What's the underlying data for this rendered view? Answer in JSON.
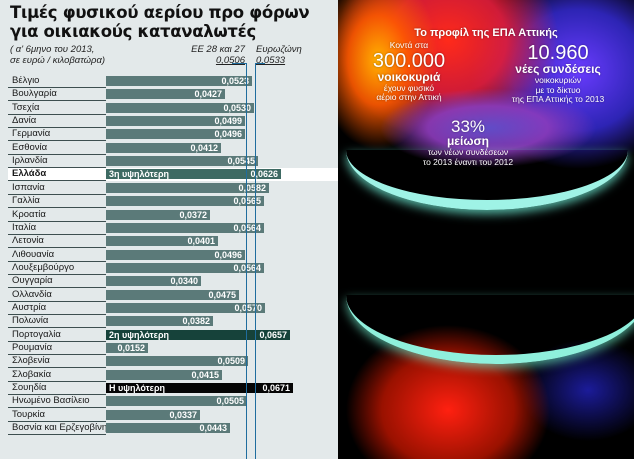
{
  "chart_data": {
    "type": "bar",
    "orientation": "horizontal",
    "title": "Τιμές φυσικού αερίου προ φόρων για οικιακούς καταναλωτές",
    "subtitle": "(α' 6μηνο του 2013, σε ευρώ / κιλοβατώρα)",
    "xlabel": "",
    "ylabel": "",
    "xlim": [
      0,
      0.07
    ],
    "grid": false,
    "reference_lines": [
      {
        "name": "ΕΕ 28 και 27",
        "value": 0.0506,
        "label": "0,0506"
      },
      {
        "name": "Ευρωζώνη",
        "value": 0.0533,
        "label": "0,0533"
      }
    ],
    "categories": [
      "Βέλγιο",
      "Βουλγαρία",
      "Τσεχία",
      "Δανία",
      "Γερμανία",
      "Εσθονία",
      "Ιρλανδία",
      "Ελλάδα",
      "Ισπανία",
      "Γαλλία",
      "Κροατία",
      "Ιταλία",
      "Λετονία",
      "Λιθουανία",
      "Λουξεμβούργο",
      "Ουγγαρία",
      "Ολλανδία",
      "Αυστρία",
      "Πολωνία",
      "Πορτογαλία",
      "Ρουμανία",
      "Σλοβενία",
      "Σλοβακία",
      "Σουηδία",
      "Ηνωμένο Βασίλειο",
      "Τουρκία",
      "Βοσνία και Ερζεγοβίνη"
    ],
    "values": [
      0.0523,
      0.0427,
      0.053,
      0.0499,
      0.0496,
      0.0412,
      0.0545,
      0.0626,
      0.0582,
      0.0565,
      0.0372,
      0.0564,
      0.0401,
      0.0496,
      0.0564,
      0.034,
      0.0475,
      0.057,
      0.0382,
      0.0657,
      0.0152,
      0.0509,
      0.0415,
      0.0671,
      0.0505,
      0.0337,
      0.0443
    ],
    "annotations": [
      {
        "category": "Σουηδία",
        "text": "Η υψηλότερη"
      },
      {
        "category": "Πορτογαλία",
        "text": "2η υψηλότερη"
      },
      {
        "category": "Ελλάδα",
        "text": "3η υψηλότερη"
      }
    ]
  },
  "header": {
    "title_line1": "Τιμές φυσικού αερίου προ φόρων",
    "title_line2": "για οικιακούς καταναλωτές",
    "subtitle_line1": "( α' 6μηνο του 2013,",
    "subtitle_line2": "σε ευρώ / κιλοβατώρα)",
    "eu_label": "ΕΕ 28 και 27",
    "eu_value": "0,0506",
    "ez_label": "Ευρωζώνη",
    "ez_value": "0,0533"
  },
  "rows": [
    {
      "label": "Βέλγιο",
      "value": "0,0523",
      "rank": ""
    },
    {
      "label": "Βουλγαρία",
      "value": "0,0427",
      "rank": ""
    },
    {
      "label": "Τσεχία",
      "value": "0,0530",
      "rank": ""
    },
    {
      "label": "Δανία",
      "value": "0,0499",
      "rank": ""
    },
    {
      "label": "Γερμανία",
      "value": "0,0496",
      "rank": ""
    },
    {
      "label": "Εσθονία",
      "value": "0,0412",
      "rank": ""
    },
    {
      "label": "Ιρλανδία",
      "value": "0,0545",
      "rank": ""
    },
    {
      "label": "Ελλάδα",
      "value": "0,0626",
      "rank": "3η υψηλότερη"
    },
    {
      "label": "Ισπανία",
      "value": "0,0582",
      "rank": ""
    },
    {
      "label": "Γαλλία",
      "value": "0,0565",
      "rank": ""
    },
    {
      "label": "Κροατία",
      "value": "0,0372",
      "rank": ""
    },
    {
      "label": "Ιταλία",
      "value": "0,0564",
      "rank": ""
    },
    {
      "label": "Λετονία",
      "value": "0,0401",
      "rank": ""
    },
    {
      "label": "Λιθουανία",
      "value": "0,0496",
      "rank": ""
    },
    {
      "label": "Λουξεμβούργο",
      "value": "0,0564",
      "rank": ""
    },
    {
      "label": "Ουγγαρία",
      "value": "0,0340",
      "rank": ""
    },
    {
      "label": "Ολλανδία",
      "value": "0,0475",
      "rank": ""
    },
    {
      "label": "Αυστρία",
      "value": "0,0570",
      "rank": ""
    },
    {
      "label": "Πολωνία",
      "value": "0,0382",
      "rank": ""
    },
    {
      "label": "Πορτογαλία",
      "value": "0,0657",
      "rank": "2η υψηλότερη"
    },
    {
      "label": "Ρουμανία",
      "value": "0,0152",
      "rank": ""
    },
    {
      "label": "Σλοβενία",
      "value": "0,0509",
      "rank": ""
    },
    {
      "label": "Σλοβακία",
      "value": "0,0415",
      "rank": ""
    },
    {
      "label": "Σουηδία",
      "value": "0,0671",
      "rank": "Η υψηλότερη"
    },
    {
      "label": "Ηνωμένο Βασίλειο",
      "value": "0,0505",
      "rank": ""
    },
    {
      "label": "Τουρκία",
      "value": "0,0337",
      "rank": ""
    },
    {
      "label": "Βοσνία και Ερζεγοβίνη",
      "value": "0,0443",
      "rank": ""
    }
  ],
  "colors": {
    "bar": "#5b7a79",
    "rank3": "#3e6a63",
    "rank2": "#16423a",
    "rank1": "#050505",
    "reference_line": "#1f6d9e",
    "panel_bg": "#e3e9ea"
  },
  "infobox": {
    "title": "Το προφίλ της ΕΠΑ Αττικής",
    "stat1": {
      "pre": "Κοντά στα",
      "number": "300.000",
      "unit": "νοικοκυριά",
      "line1": "έχουν φυσικό",
      "line2": "αέριο στην Αττική"
    },
    "stat2": {
      "number": "10.960",
      "unit": "νέες συνδέσεις",
      "line1": "νοικοκυριών",
      "line2": "με το δίκτυο",
      "line3": "της ΕΠΑ Αττικής το 2013"
    },
    "stat3": {
      "number": "33%",
      "unit": "μείωση",
      "line1": "των νέων συνδέσεων",
      "line2": "το 2013 έναντι του 2012"
    }
  }
}
